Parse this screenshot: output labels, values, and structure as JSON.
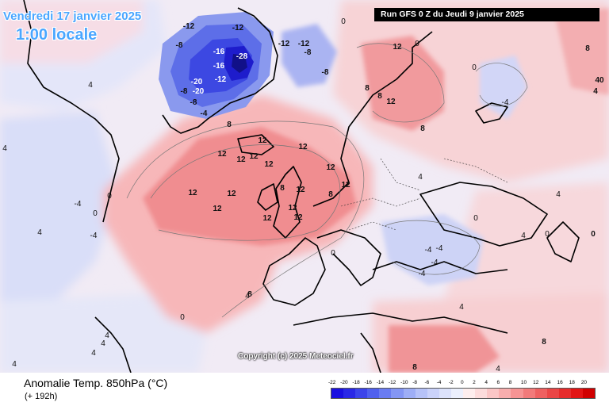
{
  "header": {
    "valid_day": "Vendredi 17 janvier 2025",
    "local_time": "1:00 locale",
    "run_info": "Run GFS 0 Z du Jeudi 9 janvier 2025"
  },
  "copyright": "Copyright (c) 2025 Meteociel.fr",
  "footer": {
    "title": "Anomalie Temp. 850hPa (°C)",
    "lead_time": "(+ 192h)"
  },
  "legend": {
    "ticks": [
      "-22",
      "-20",
      "-18",
      "-16",
      "-14",
      "-12",
      "-10",
      "-8",
      "-6",
      "-4",
      "-2",
      "0",
      "2",
      "4",
      "6",
      "8",
      "10",
      "12",
      "14",
      "16",
      "18",
      "20"
    ],
    "colors": [
      "#1a10e0",
      "#2a28e6",
      "#3c44ea",
      "#5060ee",
      "#6a7cf2",
      "#8496f4",
      "#9eaef6",
      "#b6c2f8",
      "#cad2fa",
      "#dce2fb",
      "#ecf0fd",
      "#fdeeee",
      "#fcdcdc",
      "#fac6c6",
      "#f8aeae",
      "#f69494",
      "#f27a7a",
      "#ee6060",
      "#ea4646",
      "#e62c2c",
      "#e21414",
      "#d00000"
    ]
  },
  "contour_labels": {
    "strong_cold": [
      "-20",
      "-20",
      "-16",
      "-16",
      "-28",
      "-12"
    ],
    "moderate_cold": [
      "-8",
      "-8",
      "-8",
      "-12",
      "-12",
      "-12",
      "-12",
      "-8",
      "-8",
      "-4"
    ],
    "warm": [
      "12",
      "12",
      "12",
      "12",
      "12",
      "12",
      "12",
      "12",
      "12",
      "12",
      "12",
      "12",
      "12",
      "12",
      "12",
      "12",
      "12"
    ],
    "warm_secondary": [
      "8",
      "8",
      "8",
      "8",
      "8",
      "8",
      "8",
      "8",
      "8"
    ],
    "neutral": [
      "0",
      "0",
      "0",
      "0",
      "0",
      "0",
      "0",
      "0",
      "0"
    ],
    "weak": [
      "4",
      "4",
      "4",
      "4",
      "4",
      "4",
      "4",
      "4",
      "4",
      "4",
      "4",
      "4",
      "4",
      "-4",
      "-4",
      "-4",
      "-4",
      "-4",
      "-4",
      "-4"
    ],
    "east": [
      "40",
      "8",
      "4",
      "0"
    ]
  }
}
